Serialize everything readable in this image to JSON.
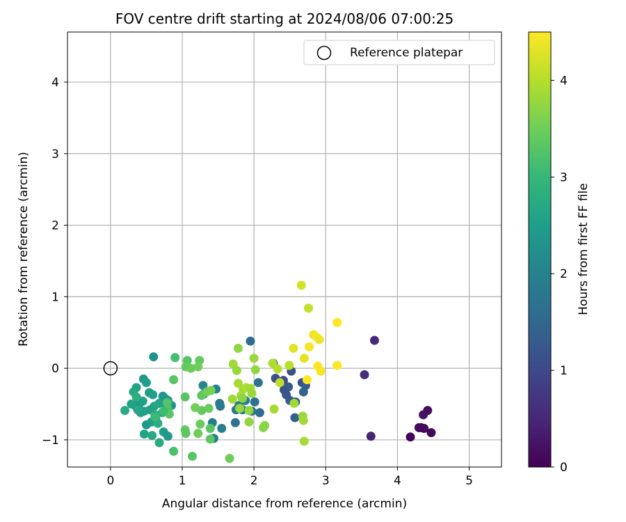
{
  "chart_data": {
    "type": "scatter",
    "title": "FOV centre drift starting at 2024/08/06 07:00:25",
    "xlabel": "Angular distance from reference (arcmin)",
    "ylabel": "Rotation from reference (arcmin)",
    "xlim": [
      -0.6,
      5.45
    ],
    "ylim": [
      -1.38,
      4.7
    ],
    "xticks": [
      0,
      1,
      2,
      3,
      4,
      5
    ],
    "yticks": [
      -1,
      0,
      1,
      2,
      3,
      4
    ],
    "grid": true,
    "legend": {
      "placement": "top-right",
      "entries": [
        {
          "label": "Reference platepar",
          "marker": "open-circle"
        }
      ]
    },
    "reference_point": {
      "x": 0,
      "y": 0
    },
    "colorbar": {
      "label": "Hours from first FF file",
      "colormap": "viridis",
      "range": [
        0,
        4.5
      ],
      "ticks": [
        0,
        1,
        2,
        3,
        4
      ],
      "stops": [
        "#440154",
        "#482878",
        "#3e4989",
        "#31688e",
        "#26828e",
        "#1f9e89",
        "#35b779",
        "#6ece58",
        "#b5de2b",
        "#fde725"
      ]
    },
    "series": [
      {
        "points": [
          {
            "x": 4.33,
            "y": -0.83,
            "t": 0.05
          },
          {
            "x": 4.37,
            "y": -0.84,
            "t": 0.1
          },
          {
            "x": 4.18,
            "y": -0.96,
            "t": 0.05
          },
          {
            "x": 4.47,
            "y": -0.9,
            "t": 0.1
          },
          {
            "x": 4.42,
            "y": -0.59,
            "t": 0.15
          },
          {
            "x": 4.36,
            "y": -0.65,
            "t": 0.2
          },
          {
            "x": 4.3,
            "y": -0.83,
            "t": 0.12
          },
          {
            "x": 3.63,
            "y": -0.95,
            "t": 0.45
          },
          {
            "x": 3.54,
            "y": -0.09,
            "t": 0.6
          },
          {
            "x": 3.68,
            "y": 0.39,
            "t": 0.55
          },
          {
            "x": 2.27,
            "y": 0.07,
            "t": 1.2
          },
          {
            "x": 2.3,
            "y": -0.14,
            "t": 1.1
          },
          {
            "x": 2.41,
            "y": -0.17,
            "t": 1.0
          },
          {
            "x": 2.52,
            "y": -0.04,
            "t": 1.1
          },
          {
            "x": 2.45,
            "y": -0.37,
            "t": 1.2
          },
          {
            "x": 2.48,
            "y": -0.26,
            "t": 1.3
          },
          {
            "x": 2.58,
            "y": -0.47,
            "t": 1.4
          },
          {
            "x": 2.57,
            "y": -0.69,
            "t": 1.35
          },
          {
            "x": 2.67,
            "y": -0.2,
            "t": 1.15
          },
          {
            "x": 2.72,
            "y": -0.24,
            "t": 1.25
          },
          {
            "x": 2.69,
            "y": -0.33,
            "t": 1.4
          },
          {
            "x": 2.42,
            "y": -0.3,
            "t": 1.15
          },
          {
            "x": 2.5,
            "y": -0.45,
            "t": 1.3
          },
          {
            "x": 1.95,
            "y": 0.38,
            "t": 1.6
          },
          {
            "x": 2.06,
            "y": -0.2,
            "t": 1.7
          },
          {
            "x": 2.01,
            "y": -0.47,
            "t": 1.65
          },
          {
            "x": 2.08,
            "y": -0.62,
            "t": 1.6
          },
          {
            "x": 1.97,
            "y": -0.6,
            "t": 1.75
          },
          {
            "x": 1.79,
            "y": -0.52,
            "t": 1.8
          },
          {
            "x": 1.84,
            "y": -0.58,
            "t": 1.9
          },
          {
            "x": 1.75,
            "y": -0.58,
            "t": 1.85
          },
          {
            "x": 1.74,
            "y": -0.76,
            "t": 1.7
          },
          {
            "x": 1.88,
            "y": -0.45,
            "t": 1.95
          },
          {
            "x": 1.52,
            "y": -0.49,
            "t": 1.8
          },
          {
            "x": 1.53,
            "y": -0.53,
            "t": 1.85
          },
          {
            "x": 1.55,
            "y": -0.84,
            "t": 2.0
          },
          {
            "x": 1.44,
            "y": -0.98,
            "t": 1.9
          },
          {
            "x": 1.42,
            "y": -0.76,
            "t": 1.95
          },
          {
            "x": 1.47,
            "y": -0.29,
            "t": 2.0
          },
          {
            "x": 1.29,
            "y": -0.24,
            "t": 2.05
          },
          {
            "x": 1.3,
            "y": -0.36,
            "t": 2.1
          },
          {
            "x": 0.6,
            "y": 0.16,
            "t": 2.3
          },
          {
            "x": 0.46,
            "y": -0.15,
            "t": 2.4
          },
          {
            "x": 0.5,
            "y": -0.2,
            "t": 2.5
          },
          {
            "x": 0.36,
            "y": -0.27,
            "t": 2.6
          },
          {
            "x": 0.54,
            "y": -0.34,
            "t": 2.45
          },
          {
            "x": 0.59,
            "y": -0.37,
            "t": 2.55
          },
          {
            "x": 0.73,
            "y": -0.39,
            "t": 2.35
          },
          {
            "x": 0.76,
            "y": -0.42,
            "t": 2.4
          },
          {
            "x": 0.8,
            "y": -0.45,
            "t": 2.3
          },
          {
            "x": 0.85,
            "y": -0.52,
            "t": 2.25
          },
          {
            "x": 0.78,
            "y": -0.55,
            "t": 2.5
          },
          {
            "x": 0.68,
            "y": -0.49,
            "t": 2.6
          },
          {
            "x": 0.61,
            "y": -0.53,
            "t": 2.65
          },
          {
            "x": 0.55,
            "y": -0.58,
            "t": 2.55
          },
          {
            "x": 0.45,
            "y": -0.46,
            "t": 2.6
          },
          {
            "x": 0.4,
            "y": -0.5,
            "t": 2.5
          },
          {
            "x": 0.34,
            "y": -0.52,
            "t": 2.45
          },
          {
            "x": 0.29,
            "y": -0.5,
            "t": 2.6
          },
          {
            "x": 0.32,
            "y": -0.33,
            "t": 2.7
          },
          {
            "x": 0.47,
            "y": -0.6,
            "t": 2.55
          },
          {
            "x": 0.5,
            "y": -0.79,
            "t": 2.4
          },
          {
            "x": 0.57,
            "y": -0.75,
            "t": 2.5
          },
          {
            "x": 0.63,
            "y": -0.7,
            "t": 2.65
          },
          {
            "x": 0.66,
            "y": -0.77,
            "t": 2.8
          },
          {
            "x": 0.47,
            "y": -0.92,
            "t": 2.6
          },
          {
            "x": 0.58,
            "y": -0.94,
            "t": 2.7
          },
          {
            "x": 0.68,
            "y": -1.04,
            "t": 2.75
          },
          {
            "x": 0.74,
            "y": -0.89,
            "t": 2.5
          },
          {
            "x": 0.8,
            "y": -0.95,
            "t": 2.4
          },
          {
            "x": 0.72,
            "y": -0.62,
            "t": 2.7
          },
          {
            "x": 0.42,
            "y": -0.62,
            "t": 2.55
          },
          {
            "x": 0.2,
            "y": -0.59,
            "t": 2.75
          },
          {
            "x": 0.38,
            "y": -0.58,
            "t": 2.65
          },
          {
            "x": 0.62,
            "y": -0.65,
            "t": 2.75
          },
          {
            "x": 0.36,
            "y": -0.4,
            "t": 2.85
          },
          {
            "x": 0.9,
            "y": 0.15,
            "t": 3.15
          },
          {
            "x": 0.88,
            "y": -0.16,
            "t": 3.3
          },
          {
            "x": 1.04,
            "y": -0.4,
            "t": 3.3
          },
          {
            "x": 0.88,
            "y": -1.16,
            "t": 3.2
          },
          {
            "x": 1.14,
            "y": -1.23,
            "t": 3.3
          },
          {
            "x": 1.04,
            "y": -0.86,
            "t": 3.4
          },
          {
            "x": 1.05,
            "y": -0.91,
            "t": 3.35
          },
          {
            "x": 1.22,
            "y": -0.91,
            "t": 3.5
          },
          {
            "x": 1.25,
            "y": -0.78,
            "t": 3.45
          },
          {
            "x": 1.39,
            "y": -0.84,
            "t": 3.3
          },
          {
            "x": 1.39,
            "y": -0.99,
            "t": 3.35
          },
          {
            "x": 1.27,
            "y": -0.59,
            "t": 3.4
          },
          {
            "x": 1.18,
            "y": -0.55,
            "t": 3.5
          },
          {
            "x": 1.37,
            "y": -0.56,
            "t": 3.45
          },
          {
            "x": 1.27,
            "y": -0.38,
            "t": 3.35
          },
          {
            "x": 1.34,
            "y": -0.33,
            "t": 3.5
          },
          {
            "x": 1.4,
            "y": -0.31,
            "t": 3.55
          },
          {
            "x": 1.07,
            "y": 0.11,
            "t": 3.3
          },
          {
            "x": 1.05,
            "y": 0.02,
            "t": 3.4
          },
          {
            "x": 1.12,
            "y": 0.0,
            "t": 3.45
          },
          {
            "x": 1.24,
            "y": 0.11,
            "t": 3.4
          },
          {
            "x": 1.22,
            "y": 0.02,
            "t": 3.5
          },
          {
            "x": 1.66,
            "y": -1.26,
            "t": 3.5
          },
          {
            "x": 0.8,
            "y": -0.57,
            "t": 3.2
          },
          {
            "x": 0.82,
            "y": -0.64,
            "t": 3.3
          },
          {
            "x": 0.79,
            "y": -0.48,
            "t": 3.25
          },
          {
            "x": 0.74,
            "y": -0.6,
            "t": 3.1
          },
          {
            "x": 0.62,
            "y": -0.68,
            "t": 3.05
          },
          {
            "x": 1.71,
            "y": 0.06,
            "t": 3.85
          },
          {
            "x": 1.76,
            "y": -0.03,
            "t": 3.8
          },
          {
            "x": 1.78,
            "y": 0.28,
            "t": 3.75
          },
          {
            "x": 1.7,
            "y": -0.43,
            "t": 3.85
          },
          {
            "x": 1.78,
            "y": -0.21,
            "t": 3.9
          },
          {
            "x": 1.85,
            "y": -0.29,
            "t": 3.85
          },
          {
            "x": 1.82,
            "y": -0.38,
            "t": 3.9
          },
          {
            "x": 1.89,
            "y": -0.27,
            "t": 3.95
          },
          {
            "x": 1.95,
            "y": -0.28,
            "t": 3.85
          },
          {
            "x": 1.97,
            "y": -0.35,
            "t": 3.8
          },
          {
            "x": 1.93,
            "y": -0.59,
            "t": 3.75
          },
          {
            "x": 1.8,
            "y": -0.56,
            "t": 3.8
          },
          {
            "x": 1.84,
            "y": -0.42,
            "t": 3.7
          },
          {
            "x": 1.93,
            "y": -0.75,
            "t": 3.75
          },
          {
            "x": 2.0,
            "y": 0.14,
            "t": 3.8
          },
          {
            "x": 2.02,
            "y": -0.02,
            "t": 3.75
          },
          {
            "x": 2.13,
            "y": -0.83,
            "t": 3.65
          },
          {
            "x": 2.15,
            "y": -0.8,
            "t": 3.7
          },
          {
            "x": 2.26,
            "y": 0.07,
            "t": 3.95
          },
          {
            "x": 2.33,
            "y": -0.01,
            "t": 4.0
          },
          {
            "x": 2.36,
            "y": -0.2,
            "t": 4.05
          },
          {
            "x": 2.28,
            "y": -0.57,
            "t": 3.9
          },
          {
            "x": 2.56,
            "y": -0.49,
            "t": 3.85
          },
          {
            "x": 2.68,
            "y": -0.67,
            "t": 3.8
          },
          {
            "x": 2.69,
            "y": -0.73,
            "t": 3.85
          },
          {
            "x": 2.7,
            "y": -1.02,
            "t": 3.9
          },
          {
            "x": 2.49,
            "y": 0.04,
            "t": 4.05
          },
          {
            "x": 2.66,
            "y": 1.16,
            "t": 4.2
          },
          {
            "x": 2.76,
            "y": 0.84,
            "t": 4.1
          },
          {
            "x": 2.55,
            "y": 0.28,
            "t": 4.3
          },
          {
            "x": 2.7,
            "y": 0.14,
            "t": 4.35
          },
          {
            "x": 2.83,
            "y": 0.47,
            "t": 4.4
          },
          {
            "x": 2.88,
            "y": 0.43,
            "t": 4.45
          },
          {
            "x": 2.91,
            "y": 0.4,
            "t": 4.4
          },
          {
            "x": 2.77,
            "y": 0.3,
            "t": 4.45
          },
          {
            "x": 2.89,
            "y": 0.03,
            "t": 4.5
          },
          {
            "x": 2.93,
            "y": -0.04,
            "t": 4.45
          },
          {
            "x": 2.74,
            "y": -0.16,
            "t": 4.5
          },
          {
            "x": 3.16,
            "y": 0.64,
            "t": 4.5
          },
          {
            "x": 3.16,
            "y": 0.04,
            "t": 4.5
          }
        ]
      }
    ]
  }
}
